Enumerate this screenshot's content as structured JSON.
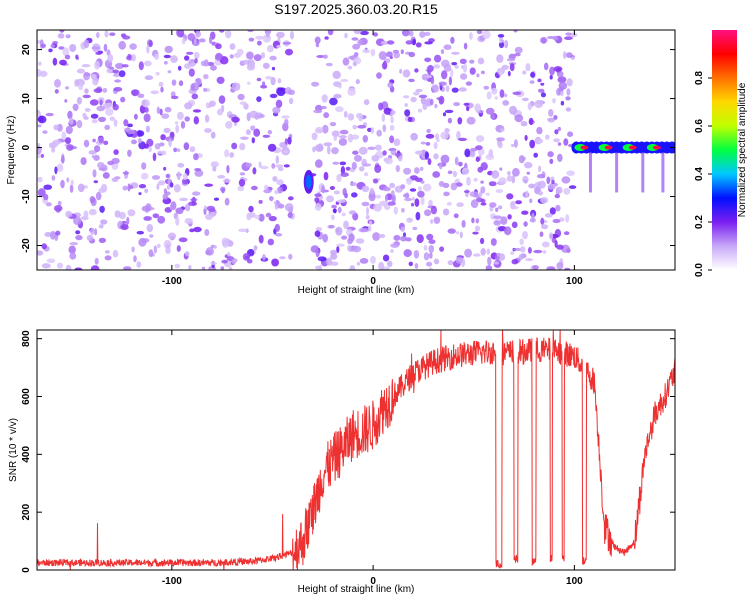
{
  "title": "S197.2025.360.03.20.R15",
  "chart_data": [
    {
      "type": "heatmap",
      "xlabel": "Height of straight line (km)",
      "ylabel": "Frequency (Hz)",
      "xlim": [
        -167,
        150
      ],
      "ylim": [
        -25,
        24
      ],
      "xticks": [
        -100,
        0,
        100
      ],
      "yticks": [
        -20,
        -10,
        0,
        10,
        20
      ],
      "colorbar": {
        "label": "Normalized spectral amplitude",
        "range": [
          0,
          1
        ],
        "ticks": [
          0.0,
          0.2,
          0.4,
          0.6,
          0.8
        ],
        "colors": [
          "#ffffff",
          "#c8a8f8",
          "#7a1ef0",
          "#0010ff",
          "#00c8ff",
          "#00ff40",
          "#c0ff00",
          "#ffd800",
          "#ff7000",
          "#ff0000",
          "#ff1080"
        ]
      },
      "features": [
        {
          "kind": "noise",
          "x": [
            -167,
            100
          ],
          "y": [
            -25,
            24
          ],
          "amplitude": 0.2
        },
        {
          "kind": "gap",
          "x": [
            -40,
            -30
          ],
          "y": [
            -25,
            24
          ]
        },
        {
          "kind": "blob",
          "x": -32,
          "y": -7,
          "amplitude": 0.35
        },
        {
          "kind": "carrier_line",
          "x": [
            101,
            150
          ],
          "y": 0,
          "amplitude": 0.95
        },
        {
          "kind": "quiet",
          "x": [
            101,
            150
          ],
          "y": [
            -25,
            24
          ]
        }
      ]
    },
    {
      "type": "line",
      "xlabel": "Height of straight line (km)",
      "ylabel": "SNR (10 * v/v)",
      "xlim": [
        -167,
        150
      ],
      "ylim": [
        0,
        830
      ],
      "xticks": [
        -100,
        0,
        100
      ],
      "yticks": [
        0,
        200,
        400,
        600,
        800
      ],
      "color": "#ee3030",
      "envelope": {
        "x": [
          -167,
          -120,
          -80,
          -60,
          -50,
          -40,
          -35,
          -30,
          -25,
          -20,
          -15,
          -10,
          -5,
          0,
          5,
          10,
          20,
          30,
          40,
          50,
          60,
          70,
          80,
          90,
          100,
          105,
          110,
          112,
          115,
          120,
          125,
          130,
          135,
          140,
          145,
          150
        ],
        "y": [
          25,
          25,
          25,
          30,
          40,
          60,
          100,
          200,
          330,
          380,
          420,
          470,
          480,
          500,
          560,
          600,
          680,
          720,
          740,
          750,
          755,
          750,
          760,
          760,
          740,
          700,
          650,
          450,
          150,
          80,
          60,
          100,
          400,
          540,
          600,
          690
        ]
      },
      "dropouts": [
        {
          "x": [
            61,
            64
          ],
          "y": 20
        },
        {
          "x": [
            70,
            72
          ],
          "y": 40
        },
        {
          "x": [
            79,
            81
          ],
          "y": 30
        },
        {
          "x": [
            88,
            89
          ],
          "y": 40
        },
        {
          "x": [
            94,
            95
          ],
          "y": 40
        },
        {
          "x": [
            104,
            106
          ],
          "y": 30
        }
      ]
    }
  ]
}
